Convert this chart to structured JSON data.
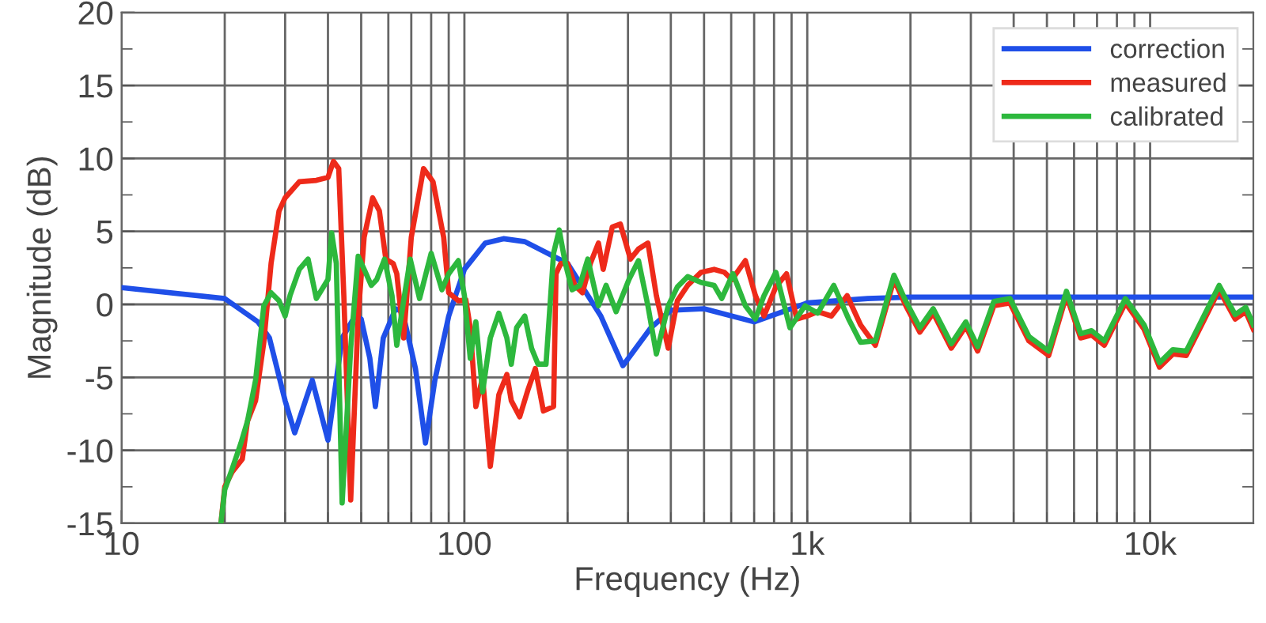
{
  "chart_data": {
    "type": "line",
    "xlabel": "Frequency (Hz)",
    "ylabel": "Magnitude (dB)",
    "log": "x",
    "grid": true,
    "legend": "top right",
    "marker": "none",
    "line_style": "solid",
    "xlim": [
      10,
      20000
    ],
    "ylim": [
      -15,
      20
    ],
    "xticks": [
      10,
      {
        "value": 20,
        "label": null
      },
      {
        "value": 30,
        "label": null
      },
      {
        "value": 40,
        "label": null
      },
      {
        "value": 50,
        "label": null
      },
      {
        "value": 60,
        "label": null
      },
      {
        "value": 70,
        "label": null
      },
      {
        "value": 80,
        "label": null
      },
      {
        "value": 90,
        "label": null
      },
      100,
      {
        "value": 200,
        "label": null
      },
      {
        "value": 300,
        "label": null
      },
      {
        "value": 400,
        "label": null
      },
      {
        "value": 500,
        "label": null
      },
      {
        "value": 600,
        "label": null
      },
      {
        "value": 700,
        "label": null
      },
      {
        "value": 800,
        "label": null
      },
      {
        "value": 900,
        "label": null
      },
      {
        "value": 1000,
        "label": "1k"
      },
      {
        "value": 2000,
        "label": null
      },
      {
        "value": 3000,
        "label": null
      },
      {
        "value": 4000,
        "label": null
      },
      {
        "value": 5000,
        "label": null
      },
      {
        "value": 6000,
        "label": null
      },
      {
        "value": 7000,
        "label": null
      },
      {
        "value": 8000,
        "label": null
      },
      {
        "value": 9000,
        "label": null
      },
      {
        "value": 10000,
        "label": "10k"
      }
    ],
    "yticks": [
      -15,
      {
        "value": -12.5,
        "label": null
      },
      -10,
      {
        "value": -7.5,
        "label": null
      },
      -5,
      {
        "value": -2.5,
        "label": null
      },
      0,
      {
        "value": 2.5,
        "label": null
      },
      5,
      {
        "value": 7.5,
        "label": null
      },
      10,
      {
        "value": 12.5,
        "label": null
      },
      15,
      {
        "value": 17.5,
        "label": null
      },
      20
    ],
    "series": [
      {
        "name": "correction",
        "color": "#1f4fe8",
        "x": [
          10,
          20,
          25,
          27,
          30,
          32,
          36,
          40,
          44,
          48,
          50,
          53,
          55,
          58,
          63,
          66,
          72,
          77,
          82,
          90,
          100,
          115,
          130,
          150,
          200,
          250,
          290,
          350,
          400,
          500,
          700,
          1000,
          1500,
          2000,
          20000
        ],
        "values": [
          1.15,
          0.4,
          -1.2,
          -2.3,
          -6.6,
          -8.8,
          -5.2,
          -9.3,
          -2.3,
          -0.8,
          -1.0,
          -3.7,
          -7.0,
          -2.3,
          -0.3,
          -0.5,
          -4.4,
          -9.5,
          -5.2,
          -0.8,
          2.4,
          4.2,
          4.5,
          4.3,
          2.8,
          -0.8,
          -4.2,
          -1.6,
          -0.4,
          -0.3,
          -1.2,
          0.1,
          0.4,
          0.5,
          0.5
        ]
      },
      {
        "name": "measured",
        "color": "#ee2a1a",
        "x": [
          19.5,
          20,
          21,
          22.5,
          23.3,
          24.6,
          26,
          27.3,
          28.8,
          30,
          33,
          37,
          40,
          41.5,
          43,
          44.5,
          46.6,
          49,
          51,
          54,
          56.5,
          59,
          62,
          63.5,
          66.5,
          70,
          76,
          81,
          87,
          90,
          96,
          101,
          104,
          108,
          113,
          119,
          126,
          133,
          137,
          145,
          153,
          161,
          170,
          182,
          185,
          191,
          200,
          210,
          221,
          233,
          246,
          254,
          270,
          285,
          305,
          322,
          343,
          363,
          393,
          418,
          448,
          490,
          535,
          573,
          603,
          660,
          706,
          748,
          810,
          870,
          932,
          1000,
          1073,
          1176,
          1307,
          1430,
          1580,
          1790,
          1940,
          2130,
          2330,
          2630,
          2900,
          3140,
          3500,
          3900,
          4430,
          5060,
          5700,
          6270,
          6750,
          7350,
          8470,
          9600,
          10650,
          11650,
          12750,
          15900,
          17700,
          19000,
          20000
        ],
        "values": [
          -15,
          -12.5,
          -11.5,
          -10.6,
          -8,
          -6.6,
          -2.6,
          2.8,
          6.4,
          7.3,
          8.4,
          8.5,
          8.7,
          9.8,
          9.3,
          0.6,
          -13.4,
          -0.8,
          4.6,
          7.3,
          6.4,
          3.1,
          2.8,
          2.1,
          -2.3,
          4.6,
          9.3,
          8.4,
          4.6,
          0.8,
          0.25,
          0.3,
          -1.6,
          -7,
          -5,
          -11.1,
          -6.2,
          -4.8,
          -6.6,
          -7.7,
          -5.9,
          -4.4,
          -7.3,
          -7,
          2.1,
          2.8,
          2.8,
          1.3,
          0.8,
          2.8,
          4.2,
          2.4,
          5.3,
          5.5,
          3.1,
          3.8,
          4.2,
          0.6,
          -3,
          0.25,
          1.3,
          2.2,
          2.4,
          2.2,
          1.7,
          3,
          0.6,
          -0.8,
          1.2,
          2.1,
          -1,
          -0.8,
          -0.5,
          -0.8,
          0.6,
          -1.4,
          -2.8,
          1.7,
          -0.1,
          -1.9,
          -0.6,
          -3,
          -1.5,
          -3.2,
          -0.1,
          0.1,
          -2.5,
          -3.5,
          0.6,
          -2.3,
          -2.1,
          -2.8,
          0.1,
          -1.7,
          -4.3,
          -3.4,
          -3.5,
          1,
          -1,
          -0.5,
          -1.7
        ]
      },
      {
        "name": "calibrated",
        "color": "#2db83d",
        "x": [
          19.5,
          20,
          21,
          22.3,
          23.3,
          24.6,
          26,
          27.3,
          28.8,
          30,
          31,
          33,
          35,
          37,
          40,
          41,
          42.3,
          44,
          46.6,
          49,
          51,
          53.5,
          55.5,
          58.5,
          61.5,
          63.5,
          66.5,
          69.5,
          74,
          80,
          86,
          90,
          96,
          100,
          104,
          108,
          113,
          119,
          126,
          133,
          137,
          142,
          150,
          157,
          164,
          173,
          182,
          189,
          197,
          206,
          217,
          229,
          246,
          259,
          277,
          302,
          322,
          343,
          363,
          393,
          418,
          448,
          490,
          535,
          563,
          607,
          660,
          706,
          748,
          810,
          890,
          985,
          1073,
          1195,
          1320,
          1430,
          1580,
          1790,
          1940,
          2130,
          2330,
          2630,
          2900,
          3140,
          3500,
          3900,
          4430,
          5060,
          5700,
          6270,
          6750,
          7350,
          8470,
          9600,
          10650,
          11650,
          12750,
          15900,
          17700,
          19000,
          20000
        ],
        "values": [
          -15,
          -12.7,
          -11.3,
          -9.5,
          -8,
          -5.2,
          -0.1,
          0.8,
          0.25,
          -0.8,
          0.6,
          2.4,
          3.1,
          0.4,
          1.7,
          4.9,
          2.8,
          -13.6,
          -3,
          3.3,
          2.4,
          1.3,
          1.7,
          3.1,
          0.6,
          -2.8,
          0.25,
          3.1,
          0.4,
          3.5,
          1,
          2.1,
          3,
          0.6,
          -3.7,
          -1.2,
          -6,
          -2.3,
          -0.6,
          -2.3,
          -4.1,
          -1.6,
          -0.8,
          -3,
          -4.1,
          -4.1,
          3.5,
          5.1,
          2.8,
          1,
          1.3,
          3.1,
          -0.1,
          1.3,
          -0.5,
          1.7,
          3,
          -0.1,
          -3.4,
          -0.1,
          1.2,
          1.9,
          1.5,
          1.3,
          0.4,
          2.1,
          -0.1,
          -1,
          0.6,
          2.2,
          -1.6,
          -0.1,
          -0.6,
          1.3,
          -1,
          -2.6,
          -2.5,
          2,
          0.2,
          -1.6,
          -0.3,
          -2.7,
          -1.2,
          -2.9,
          0.2,
          0.4,
          -2.2,
          -3.2,
          0.9,
          -2,
          -1.8,
          -2.5,
          0.4,
          -1.4,
          -4,
          -3.1,
          -3.2,
          1.3,
          -0.7,
          -0.2,
          -1.4
        ]
      }
    ]
  }
}
